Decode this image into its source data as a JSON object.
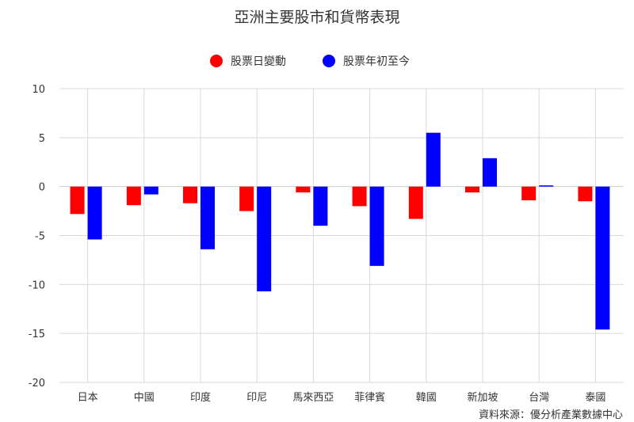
{
  "chart_data": {
    "type": "bar",
    "title": "亞洲主要股市和貨幣表現",
    "categories": [
      "日本",
      "中國",
      "印度",
      "印尼",
      "馬來西亞",
      "菲律賓",
      "韓國",
      "新加坡",
      "台灣",
      "泰國"
    ],
    "series": [
      {
        "name": "股票日變動",
        "color": "#ff0000",
        "values": [
          -2.8,
          -1.9,
          -1.7,
          -2.5,
          -0.6,
          -2.0,
          -3.3,
          -0.6,
          -1.4,
          -1.5
        ]
      },
      {
        "name": "股票年初至今",
        "color": "#0000ff",
        "values": [
          -5.4,
          -0.8,
          -6.4,
          -10.7,
          -4.0,
          -8.1,
          5.5,
          2.9,
          0.1,
          -14.6
        ]
      }
    ],
    "ylim": [
      -20,
      10
    ],
    "yticks": [
      10,
      5,
      0,
      -5,
      -10,
      -15,
      -20
    ],
    "grid": true,
    "legend": "top-center",
    "source": "資料來源：優分析產業數據中心"
  }
}
